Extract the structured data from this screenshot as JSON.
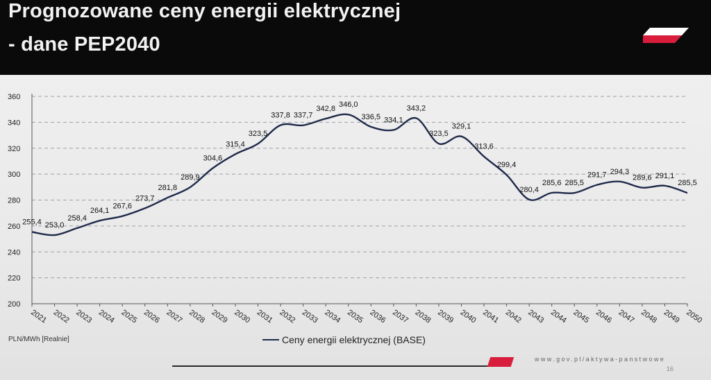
{
  "slide": {
    "title_line1": "Prognozowane ceny energii elektrycznej",
    "title_line2": "- dane PEP2040",
    "footer_url": "www.gov.pl/aktywa-panstwowe",
    "page_number": "16",
    "brand_colors": {
      "red": "#d81e3c",
      "white": "#ffffff"
    }
  },
  "chart_data": {
    "type": "line",
    "title": "",
    "unit_label": "PLN/MWh [Realnie]",
    "ylim": [
      200,
      360
    ],
    "yticks": [
      200,
      220,
      240,
      260,
      280,
      300,
      320,
      340,
      360
    ],
    "grid": true,
    "legend_position": "bottom-center",
    "x": [
      "2021",
      "2022",
      "2023",
      "2024",
      "2025",
      "2026",
      "2027",
      "2028",
      "2029",
      "2030",
      "2031",
      "2032",
      "2033",
      "2034",
      "2035",
      "2036",
      "2037",
      "2038",
      "2039",
      "2040",
      "2041",
      "2042",
      "2043",
      "2044",
      "2045",
      "2046",
      "2047",
      "2048",
      "2049",
      "2050"
    ],
    "series": [
      {
        "name": "Ceny energii elektrycznej (BASE)",
        "color": "#1f2a4a",
        "values": [
          255.4,
          253.0,
          258.4,
          264.1,
          267.6,
          273.7,
          281.8,
          289.9,
          304.6,
          315.4,
          323.5,
          337.8,
          337.7,
          342.8,
          346.0,
          336.5,
          334.1,
          343.2,
          323.5,
          329.1,
          313.6,
          299.4,
          280.4,
          285.6,
          285.5,
          291.7,
          294.3,
          289.6,
          291.1,
          285.5
        ],
        "labels": [
          "255,4",
          "253,0",
          "258,4",
          "264,1",
          "267,6",
          "273,7",
          "281,8",
          "289,9",
          "304,6",
          "315,4",
          "323,5",
          "337,8",
          "337,7",
          "342,8",
          "346,0",
          "336,5",
          "334,1",
          "343,2",
          "323,5",
          "329,1",
          "313,6",
          "299,4",
          "280,4",
          "285,6",
          "285,5",
          "291,7",
          "294,3",
          "289,6",
          "291,1",
          "285,5"
        ]
      }
    ]
  }
}
